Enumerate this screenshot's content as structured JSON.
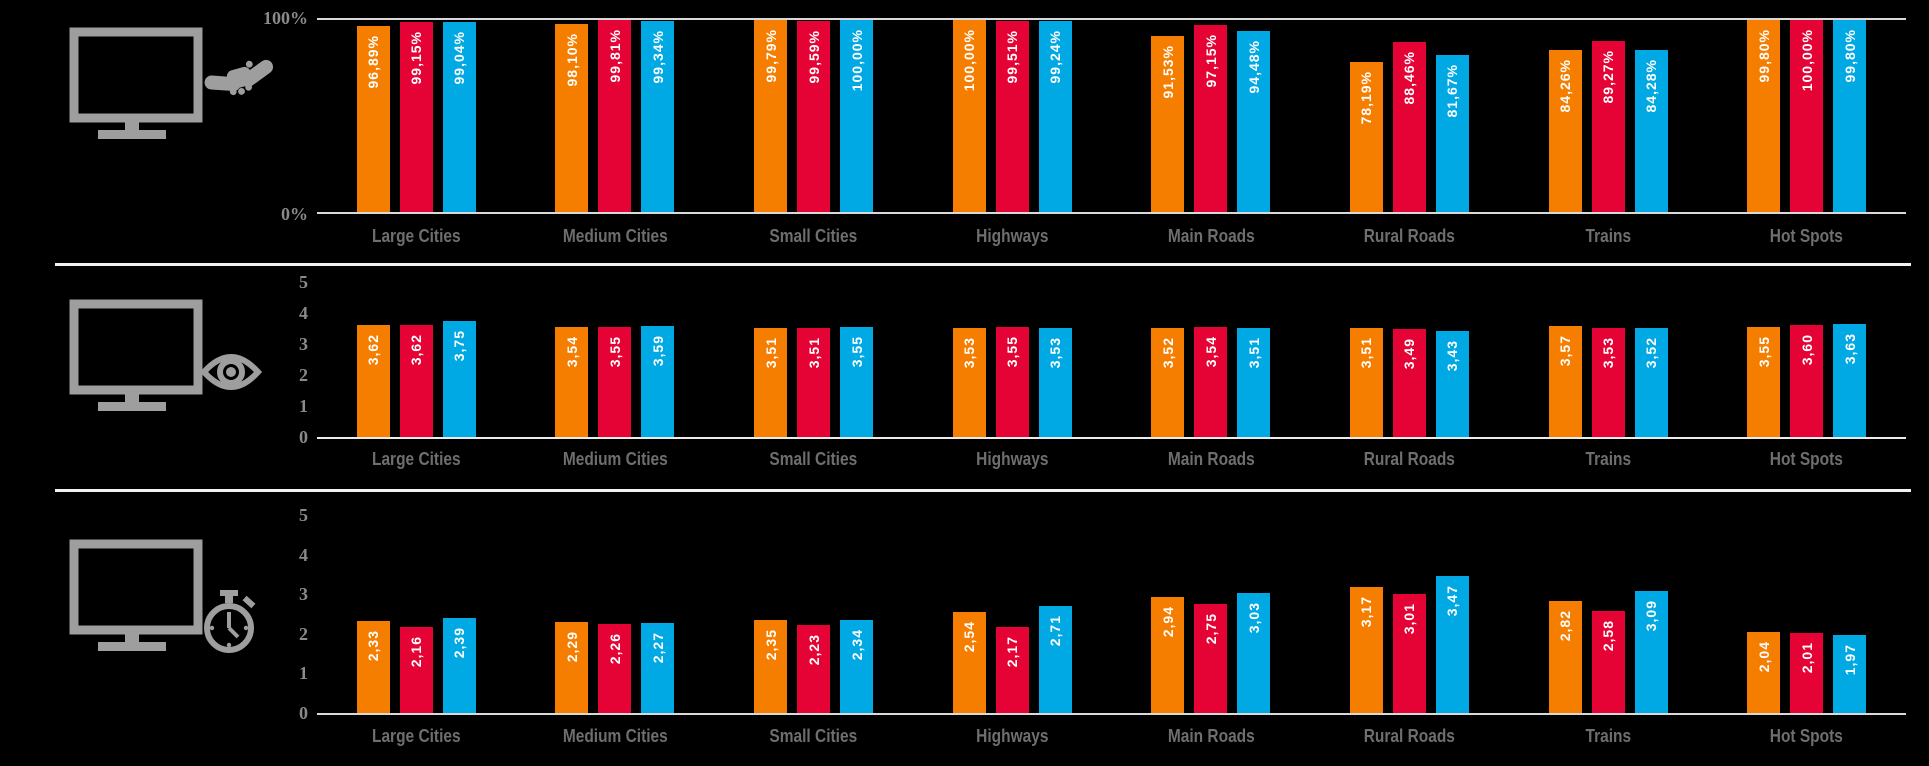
{
  "colors": {
    "background": "#000000",
    "orange": "#F57E00",
    "red": "#E40334",
    "blue": "#00A9E4",
    "icon_gray": "#9e9e9e",
    "axis_tick_gray": "#8a8a8a",
    "category_gray": "#6e6e6e",
    "gridline_gray": "#d9d9d9",
    "separator_white": "#f2f2f2",
    "bar_label_white": "#ffffff"
  },
  "chart_data": [
    {
      "type": "bar",
      "panel": "top",
      "icon": "monitor-handshake-icon",
      "title": "",
      "xlabel": "",
      "ylabel": "",
      "legend": "none",
      "grid": false,
      "ylim": [
        0,
        100
      ],
      "yticks": [
        "100%",
        "0%"
      ],
      "categories": [
        "Large Cities",
        "Medium Cities",
        "Small Cities",
        "Highways",
        "Main Roads",
        "Rural Roads",
        "Trains",
        "Hot Spots"
      ],
      "series": [
        {
          "name": "orange",
          "color": "#F57E00",
          "values": [
            96.89,
            98.1,
            99.79,
            100.0,
            91.53,
            78.19,
            84.26,
            99.8
          ],
          "labels": [
            "96,89%",
            "98,10%",
            "99,79%",
            "100,00%",
            "91,53%",
            "78,19%",
            "84,26%",
            "99,80%"
          ]
        },
        {
          "name": "red",
          "color": "#E40334",
          "values": [
            99.15,
            99.81,
            99.59,
            99.51,
            97.15,
            88.46,
            89.27,
            100.0
          ],
          "labels": [
            "99,15%",
            "99,81%",
            "99,59%",
            "99,51%",
            "97,15%",
            "88,46%",
            "89,27%",
            "100,00%"
          ]
        },
        {
          "name": "blue",
          "color": "#00A9E4",
          "values": [
            99.04,
            99.34,
            100.0,
            99.24,
            94.48,
            81.67,
            84.28,
            99.8
          ],
          "labels": [
            "99,04%",
            "99,34%",
            "100,00%",
            "99,24%",
            "94,48%",
            "81,67%",
            "84,28%",
            "99,80%"
          ]
        }
      ]
    },
    {
      "type": "bar",
      "panel": "middle",
      "icon": "monitor-eye-icon",
      "title": "",
      "xlabel": "",
      "ylabel": "",
      "legend": "none",
      "grid": false,
      "ylim": [
        0,
        5
      ],
      "yticks": [
        "5",
        "4",
        "3",
        "2",
        "1",
        "0"
      ],
      "categories": [
        "Large Cities",
        "Medium Cities",
        "Small Cities",
        "Highways",
        "Main Roads",
        "Rural Roads",
        "Trains",
        "Hot Spots"
      ],
      "series": [
        {
          "name": "orange",
          "color": "#F57E00",
          "values": [
            3.62,
            3.54,
            3.51,
            3.53,
            3.52,
            3.51,
            3.57,
            3.55
          ],
          "labels": [
            "3,62",
            "3,54",
            "3,51",
            "3,53",
            "3,52",
            "3,51",
            "3,57",
            "3,55"
          ]
        },
        {
          "name": "red",
          "color": "#E40334",
          "values": [
            3.62,
            3.55,
            3.51,
            3.55,
            3.54,
            3.49,
            3.53,
            3.6
          ],
          "labels": [
            "3,62",
            "3,55",
            "3,51",
            "3,55",
            "3,54",
            "3,49",
            "3,53",
            "3,60"
          ]
        },
        {
          "name": "blue",
          "color": "#00A9E4",
          "values": [
            3.75,
            3.59,
            3.55,
            3.53,
            3.51,
            3.43,
            3.52,
            3.63
          ],
          "labels": [
            "3,75",
            "3,59",
            "3,55",
            "3,53",
            "3,51",
            "3,43",
            "3,52",
            "3,63"
          ]
        }
      ]
    },
    {
      "type": "bar",
      "panel": "bottom",
      "icon": "monitor-stopwatch-icon",
      "title": "",
      "xlabel": "",
      "ylabel": "",
      "legend": "none",
      "grid": false,
      "ylim": [
        0,
        5
      ],
      "yticks": [
        "5",
        "4",
        "3",
        "2",
        "1",
        "0"
      ],
      "categories": [
        "Large Cities",
        "Medium Cities",
        "Small Cities",
        "Highways",
        "Main Roads",
        "Rural Roads",
        "Trains",
        "Hot Spots"
      ],
      "series": [
        {
          "name": "orange",
          "color": "#F57E00",
          "values": [
            2.33,
            2.29,
            2.35,
            2.54,
            2.94,
            3.17,
            2.82,
            2.04
          ],
          "labels": [
            "2,33",
            "2,29",
            "2,35",
            "2,54",
            "2,94",
            "3,17",
            "2,82",
            "2,04"
          ]
        },
        {
          "name": "red",
          "color": "#E40334",
          "values": [
            2.16,
            2.26,
            2.23,
            2.17,
            2.75,
            3.01,
            2.58,
            2.01
          ],
          "labels": [
            "2,16",
            "2,26",
            "2,23",
            "2,17",
            "2,75",
            "3,01",
            "2,58",
            "2,01"
          ]
        },
        {
          "name": "blue",
          "color": "#00A9E4",
          "values": [
            2.39,
            2.27,
            2.34,
            2.71,
            3.03,
            3.47,
            3.09,
            1.97
          ],
          "labels": [
            "2,39",
            "2,27",
            "2,34",
            "2,71",
            "3,03",
            "3,47",
            "3,09",
            "1,97"
          ]
        }
      ]
    }
  ]
}
